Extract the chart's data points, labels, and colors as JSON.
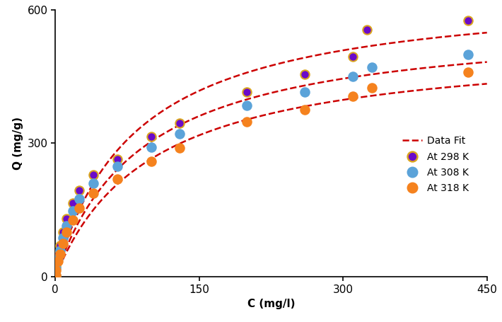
{
  "title": "",
  "xlabel": "C (mg/l)",
  "ylabel": "Q (mg/g)",
  "xlim": [
    0,
    450
  ],
  "ylim": [
    0,
    600
  ],
  "xticks": [
    0,
    150,
    300,
    450
  ],
  "yticks": [
    0,
    300,
    600
  ],
  "background_color": "#ffffff",
  "series_298K": {
    "C": [
      0.3,
      1,
      3,
      5,
      8,
      12,
      18,
      25,
      40,
      65,
      100,
      130,
      200,
      260,
      310,
      325,
      430
    ],
    "Q": [
      2,
      25,
      50,
      70,
      100,
      130,
      165,
      195,
      230,
      265,
      315,
      345,
      415,
      455,
      495,
      555,
      575
    ],
    "color": "#6b0ac9",
    "edge_color": "#DAA520",
    "label": "At 298 K"
  },
  "series_308K": {
    "C": [
      0.3,
      1,
      3,
      5,
      8,
      12,
      18,
      25,
      40,
      65,
      100,
      130,
      200,
      260,
      310,
      330,
      430
    ],
    "Q": [
      2,
      20,
      42,
      60,
      88,
      115,
      148,
      175,
      210,
      248,
      292,
      322,
      385,
      415,
      450,
      470,
      500
    ],
    "color": "#5ba3d9",
    "edge_color": "#5ba3d9",
    "label": "At 308 K"
  },
  "series_318K": {
    "C": [
      0.3,
      1,
      3,
      5,
      8,
      12,
      18,
      25,
      40,
      65,
      100,
      130,
      200,
      260,
      310,
      330,
      430
    ],
    "Q": [
      3,
      15,
      35,
      52,
      75,
      100,
      128,
      155,
      188,
      220,
      260,
      290,
      348,
      375,
      405,
      425,
      460
    ],
    "color": "#f5821e",
    "edge_color": "#f5821e",
    "label": "At 318 K"
  },
  "fit_298K": {
    "Qmax": 650,
    "b": 0.012
  },
  "fit_308K": {
    "Qmax": 580,
    "b": 0.011
  },
  "fit_318K": {
    "Qmax": 530,
    "b": 0.01
  },
  "fit_color": "#cc0000",
  "fit_linestyle": "--",
  "fit_linewidth": 1.8,
  "marker_size": 80,
  "legend_loc": "center right",
  "font_size": 11
}
